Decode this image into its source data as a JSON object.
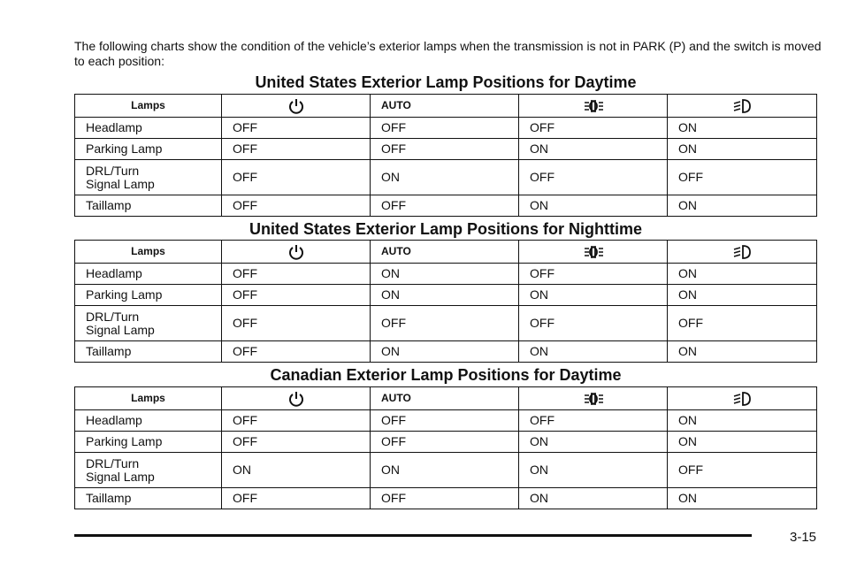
{
  "intro": "The following charts show the condition of the vehicle’s exterior lamps when the transmission is not in PARK (P) and the switch is moved to each position:",
  "header_icons": [
    "power-off-icon",
    "parking-lamp-icon",
    "headlamp-icon"
  ],
  "tables": [
    {
      "title": "United States Exterior Lamp Positions for Daytime",
      "lamps_header": "Lamps",
      "auto_header": "AUTO",
      "rows": [
        {
          "lamp": "Headlamp",
          "off": "OFF",
          "auto": "OFF",
          "parking": "OFF",
          "headlamp": "ON"
        },
        {
          "lamp": "Parking Lamp",
          "off": "OFF",
          "auto": "OFF",
          "parking": "ON",
          "headlamp": "ON"
        },
        {
          "lamp": "DRL/Turn\nSignal Lamp",
          "off": "OFF",
          "auto": "ON",
          "parking": "OFF",
          "headlamp": "OFF"
        },
        {
          "lamp": "Taillamp",
          "off": "OFF",
          "auto": "OFF",
          "parking": "ON",
          "headlamp": "ON"
        }
      ]
    },
    {
      "title": "United States Exterior Lamp Positions for Nighttime",
      "lamps_header": "Lamps",
      "auto_header": "AUTO",
      "rows": [
        {
          "lamp": "Headlamp",
          "off": "OFF",
          "auto": "ON",
          "parking": "OFF",
          "headlamp": "ON"
        },
        {
          "lamp": "Parking Lamp",
          "off": "OFF",
          "auto": "ON",
          "parking": "ON",
          "headlamp": "ON"
        },
        {
          "lamp": "DRL/Turn\nSignal Lamp",
          "off": "OFF",
          "auto": "OFF",
          "parking": "OFF",
          "headlamp": "OFF"
        },
        {
          "lamp": "Taillamp",
          "off": "OFF",
          "auto": "ON",
          "parking": "ON",
          "headlamp": "ON"
        }
      ]
    },
    {
      "title": "Canadian Exterior Lamp Positions for Daytime",
      "lamps_header": "Lamps",
      "auto_header": "AUTO",
      "rows": [
        {
          "lamp": "Headlamp",
          "off": "OFF",
          "auto": "OFF",
          "parking": "OFF",
          "headlamp": "ON"
        },
        {
          "lamp": "Parking Lamp",
          "off": "OFF",
          "auto": "OFF",
          "parking": "ON",
          "headlamp": "ON"
        },
        {
          "lamp": "DRL/Turn\nSignal Lamp",
          "off": "ON",
          "auto": "ON",
          "parking": "ON",
          "headlamp": "OFF"
        },
        {
          "lamp": "Taillamp",
          "off": "OFF",
          "auto": "OFF",
          "parking": "ON",
          "headlamp": "ON"
        }
      ]
    }
  ],
  "page_number": "3-15"
}
